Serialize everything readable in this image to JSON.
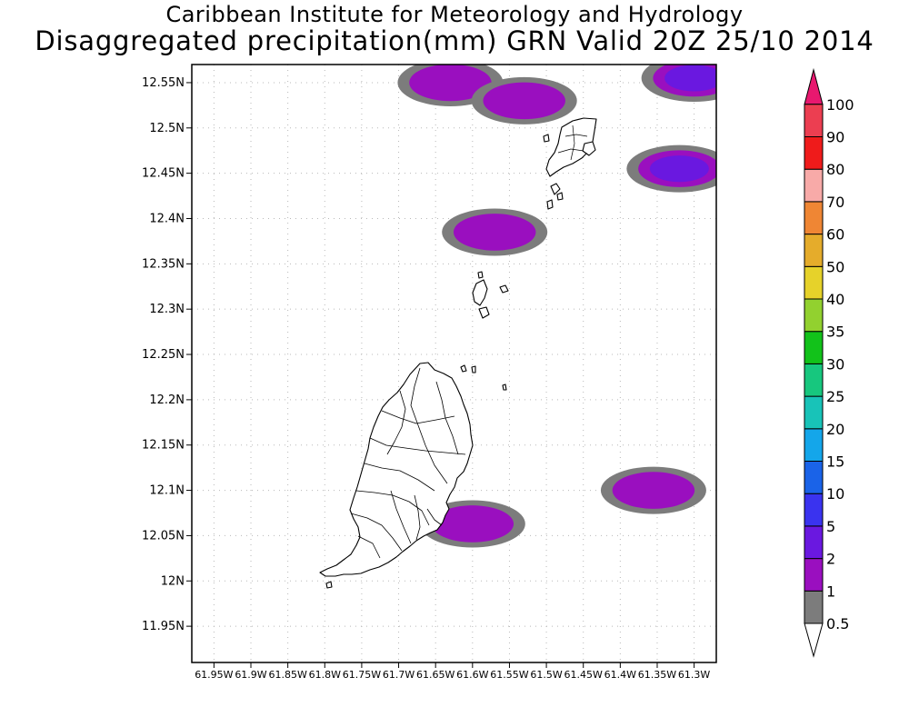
{
  "header": {
    "title": "Caribbean Institute for Meteorology and Hydrology",
    "subtitle": "Disaggregated precipitation(mm) GRN Valid 20Z 25/10 2014"
  },
  "map": {
    "region": "Grenada",
    "lon_range": [
      -61.98,
      -61.27
    ],
    "lat_range": [
      11.91,
      12.57
    ],
    "y_ticks": [
      {
        "value": 11.95,
        "label": "11.95N"
      },
      {
        "value": 12.0,
        "label": "12N"
      },
      {
        "value": 12.05,
        "label": "12.05N"
      },
      {
        "value": 12.1,
        "label": "12.1N"
      },
      {
        "value": 12.15,
        "label": "12.15N"
      },
      {
        "value": 12.2,
        "label": "12.2N"
      },
      {
        "value": 12.25,
        "label": "12.25N"
      },
      {
        "value": 12.3,
        "label": "12.3N"
      },
      {
        "value": 12.35,
        "label": "12.35N"
      },
      {
        "value": 12.4,
        "label": "12.4N"
      },
      {
        "value": 12.45,
        "label": "12.45N"
      },
      {
        "value": 12.5,
        "label": "12.5N"
      },
      {
        "value": 12.55,
        "label": "12.55N"
      }
    ],
    "x_ticks": [
      {
        "value": -61.95,
        "label": "61.95W"
      },
      {
        "value": -61.9,
        "label": "61.9W"
      },
      {
        "value": -61.85,
        "label": "61.85W"
      },
      {
        "value": -61.8,
        "label": "61.8W"
      },
      {
        "value": -61.75,
        "label": "61.75W"
      },
      {
        "value": -61.7,
        "label": "61.7W"
      },
      {
        "value": -61.65,
        "label": "61.65W"
      },
      {
        "value": -61.6,
        "label": "61.6W"
      },
      {
        "value": -61.55,
        "label": "61.55W"
      },
      {
        "value": -61.5,
        "label": "61.5W"
      },
      {
        "value": -61.45,
        "label": "61.45W"
      },
      {
        "value": -61.4,
        "label": "61.4W"
      },
      {
        "value": -61.35,
        "label": "61.35W"
      },
      {
        "value": -61.3,
        "label": "61.3W"
      }
    ],
    "grid": true,
    "precip_cells": [
      {
        "lon": -61.57,
        "lat": 12.385,
        "peak_mm": 2
      },
      {
        "lon": -61.6,
        "lat": 12.063,
        "peak_mm": 2
      },
      {
        "lon": -61.355,
        "lat": 12.1,
        "peak_mm": 2
      },
      {
        "lon": -61.32,
        "lat": 12.455,
        "peak_mm": 5
      },
      {
        "lon": -61.63,
        "lat": 12.55,
        "peak_mm": 2
      },
      {
        "lon": -61.53,
        "lat": 12.53,
        "peak_mm": 2
      },
      {
        "lon": -61.3,
        "lat": 12.555,
        "peak_mm": 5
      }
    ]
  },
  "colorbar": {
    "levels": [
      {
        "label": "0.5",
        "color": "#ffffff"
      },
      {
        "label": "1",
        "color": "#7c7c7c"
      },
      {
        "label": "2",
        "color": "#9a0fbf"
      },
      {
        "label": "5",
        "color": "#6a18e0"
      },
      {
        "label": "10",
        "color": "#3a33ef"
      },
      {
        "label": "15",
        "color": "#1a63e8"
      },
      {
        "label": "20",
        "color": "#14a6ea"
      },
      {
        "label": "25",
        "color": "#18c3b8"
      },
      {
        "label": "30",
        "color": "#17c77e"
      },
      {
        "label": "35",
        "color": "#12c21a"
      },
      {
        "label": "40",
        "color": "#92d12f"
      },
      {
        "label": "50",
        "color": "#e6d22a"
      },
      {
        "label": "60",
        "color": "#e5ac2b"
      },
      {
        "label": "70",
        "color": "#ef8634"
      },
      {
        "label": "80",
        "color": "#f8aaa8"
      },
      {
        "label": "90",
        "color": "#ef1b1b"
      },
      {
        "label": "100",
        "color": "#ec3e51"
      }
    ],
    "top_color": "#e8186f"
  }
}
